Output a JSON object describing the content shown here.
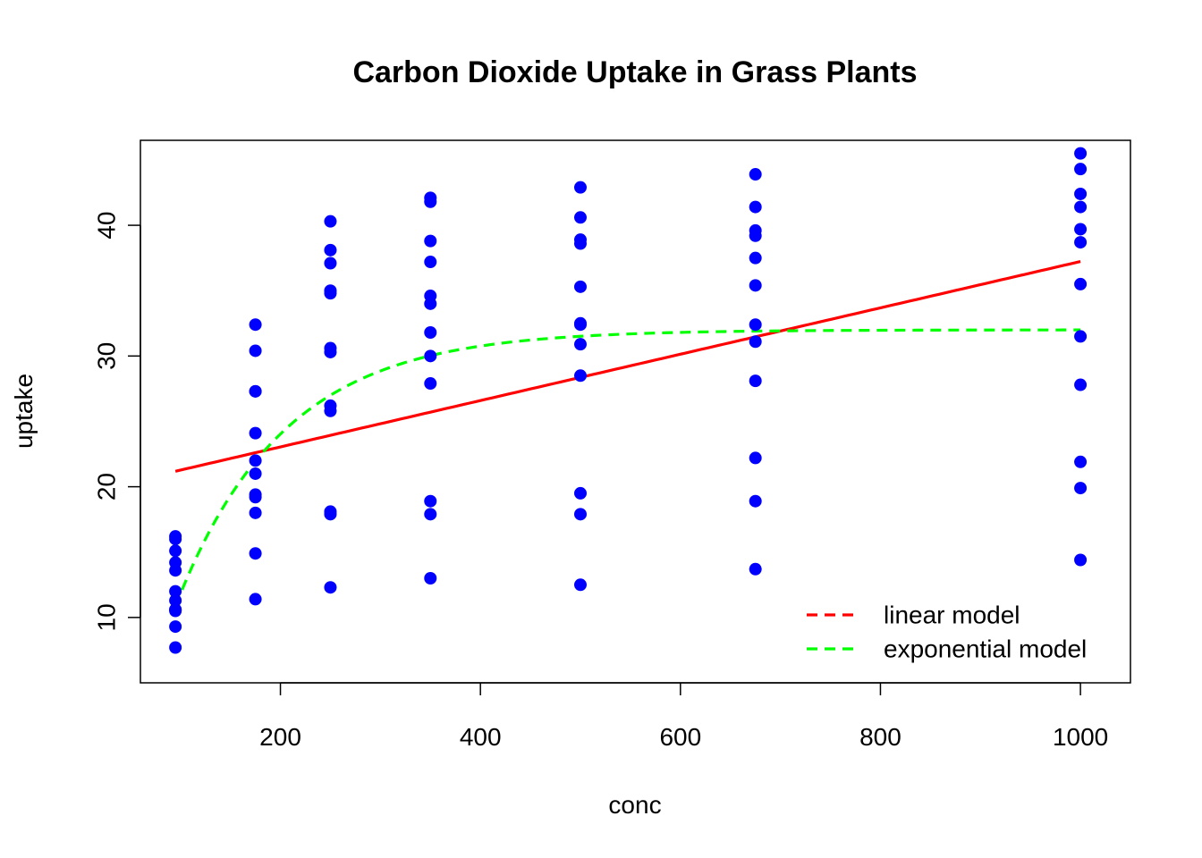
{
  "chart_data": {
    "type": "scatter",
    "title": "Carbon Dioxide Uptake in Grass Plants",
    "xlabel": "conc",
    "ylabel": "uptake",
    "xlim": [
      60,
      1050
    ],
    "ylim": [
      5,
      46.5
    ],
    "xticks": [
      200,
      400,
      600,
      800,
      1000
    ],
    "yticks": [
      10,
      20,
      30,
      40
    ],
    "grid": false,
    "legend_position": "bottom-right",
    "points": {
      "color": "#0000ff",
      "x": [
        95,
        95,
        95,
        95,
        95,
        95,
        95,
        95,
        95,
        95,
        95,
        95,
        175,
        175,
        175,
        175,
        175,
        175,
        175,
        175,
        175,
        175,
        175,
        175,
        250,
        250,
        250,
        250,
        250,
        250,
        250,
        250,
        250,
        250,
        250,
        250,
        350,
        350,
        350,
        350,
        350,
        350,
        350,
        350,
        350,
        350,
        350,
        350,
        500,
        500,
        500,
        500,
        500,
        500,
        500,
        500,
        500,
        500,
        500,
        500,
        675,
        675,
        675,
        675,
        675,
        675,
        675,
        675,
        675,
        675,
        675,
        675,
        1000,
        1000,
        1000,
        1000,
        1000,
        1000,
        1000,
        1000,
        1000,
        1000,
        1000,
        1000
      ],
      "y": [
        16.0,
        13.6,
        16.2,
        14.2,
        9.3,
        15.1,
        10.6,
        12.0,
        11.3,
        10.5,
        7.7,
        10.6,
        30.4,
        27.3,
        32.4,
        24.1,
        27.3,
        21.0,
        19.2,
        22.0,
        19.4,
        14.9,
        11.4,
        18.0,
        34.8,
        37.1,
        40.3,
        30.3,
        35.0,
        38.1,
        26.2,
        30.6,
        25.8,
        18.1,
        12.3,
        17.9,
        37.2,
        41.8,
        42.1,
        34.6,
        38.8,
        34.0,
        30.0,
        31.8,
        27.9,
        17.9,
        13.0,
        18.9,
        35.3,
        40.6,
        42.9,
        32.5,
        38.6,
        38.9,
        30.9,
        32.4,
        28.5,
        17.9,
        12.5,
        19.5,
        39.2,
        41.4,
        43.9,
        35.4,
        37.5,
        39.6,
        32.4,
        31.1,
        28.1,
        18.9,
        13.7,
        22.2,
        39.7,
        44.3,
        45.5,
        38.7,
        42.4,
        41.4,
        35.5,
        31.5,
        27.8,
        19.9,
        14.4,
        21.9
      ]
    },
    "series": [
      {
        "name": "linear model",
        "color": "#ff0000",
        "style": "solid",
        "x_start": 95,
        "x_end": 1000,
        "intercept": 19.5,
        "slope": 0.01773
      },
      {
        "name": "exponential model",
        "color": "#00ff00",
        "style": "dashed",
        "x_start": 95,
        "x_end": 1000,
        "asymptote": 32.0,
        "rate": 0.0093,
        "x_offset": 50.5
      }
    ]
  }
}
